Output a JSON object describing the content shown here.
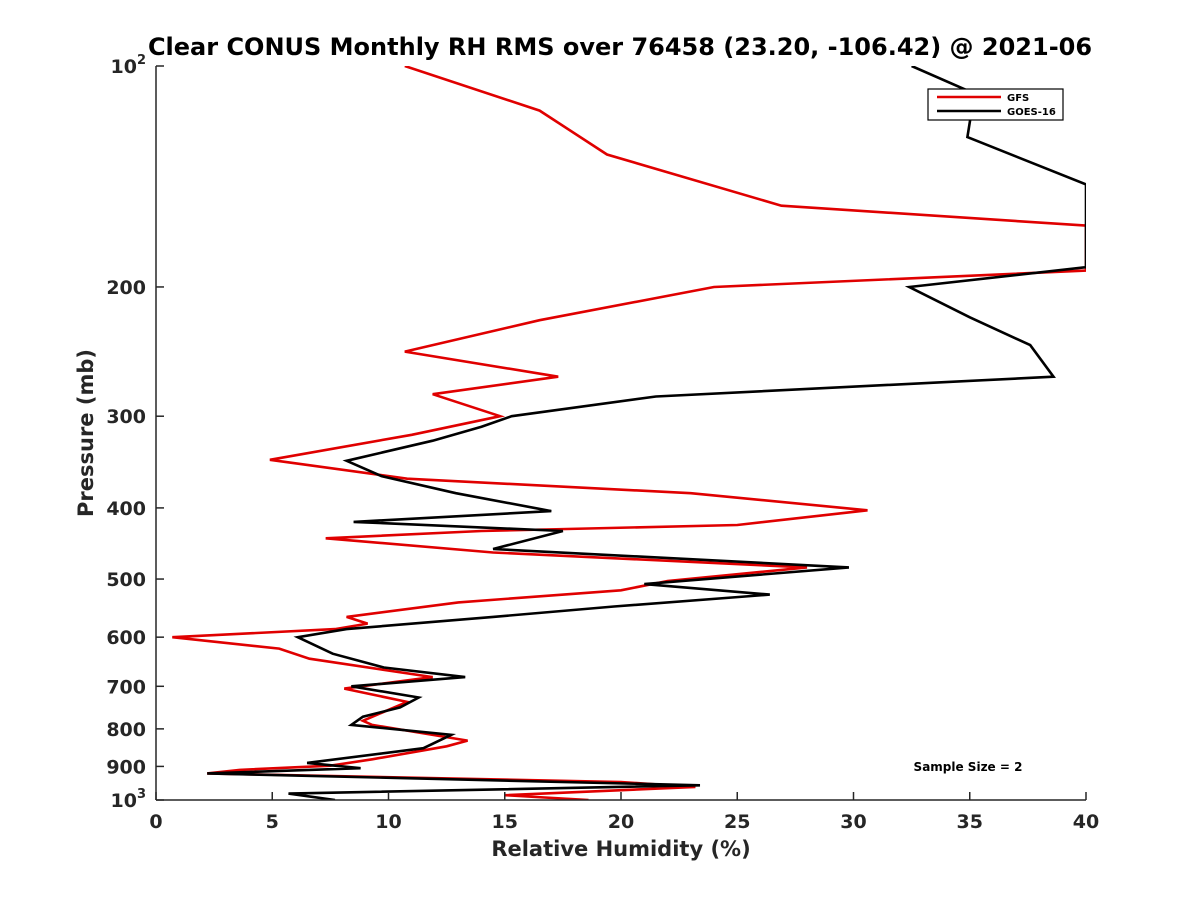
{
  "chart_data": {
    "type": "line",
    "title": "Clear CONUS Monthly RH RMS over 76458 (23.20, -106.42) @ 2021-06",
    "xlabel": "Relative Humidity (%)",
    "ylabel": "Pressure (mb)",
    "xlim": [
      0,
      40
    ],
    "ylim": [
      100,
      1000
    ],
    "y_scale": "log",
    "y_reversed": true,
    "x_ticks": [
      0,
      5,
      10,
      15,
      20,
      25,
      30,
      35,
      40
    ],
    "x_tick_labels": [
      "0",
      "5",
      "10",
      "15",
      "20",
      "25",
      "30",
      "35",
      "40"
    ],
    "y_ticks": [
      100,
      200,
      300,
      400,
      500,
      600,
      700,
      800,
      900,
      1000
    ],
    "y_tick_labels": [
      {
        "base": "10",
        "exp": "2"
      },
      {
        "base": "200",
        "exp": ""
      },
      {
        "base": "300",
        "exp": ""
      },
      {
        "base": "400",
        "exp": ""
      },
      {
        "base": "500",
        "exp": ""
      },
      {
        "base": "600",
        "exp": ""
      },
      {
        "base": "700",
        "exp": ""
      },
      {
        "base": "800",
        "exp": ""
      },
      {
        "base": "900",
        "exp": ""
      },
      {
        "base": "10",
        "exp": "3"
      }
    ],
    "grid": false,
    "legend_position": "top-right",
    "annotation": "Sample Size = 2",
    "series": [
      {
        "name": "GFS",
        "color": "#e00000",
        "points": [
          [
            10.7,
            100
          ],
          [
            16.5,
            115
          ],
          [
            19.4,
            132
          ],
          [
            26.9,
            155
          ],
          [
            40.0,
            165
          ],
          [
            40.0,
            190
          ],
          [
            24.0,
            200
          ],
          [
            16.5,
            222
          ],
          [
            10.7,
            245
          ],
          [
            17.3,
            265
          ],
          [
            11.9,
            280
          ],
          [
            14.8,
            300
          ],
          [
            11.0,
            318
          ],
          [
            4.9,
            344
          ],
          [
            10.8,
            365
          ],
          [
            23.0,
            382
          ],
          [
            30.6,
            403
          ],
          [
            25.0,
            422
          ],
          [
            14.0,
            430
          ],
          [
            7.3,
            440
          ],
          [
            14.5,
            460
          ],
          [
            28.0,
            482
          ],
          [
            22.0,
            503
          ],
          [
            20.0,
            518
          ],
          [
            13.0,
            538
          ],
          [
            8.2,
            563
          ],
          [
            9.1,
            575
          ],
          [
            7.7,
            585
          ],
          [
            0.7,
            600
          ],
          [
            5.3,
            622
          ],
          [
            6.6,
            642
          ],
          [
            11.9,
            680
          ],
          [
            8.1,
            705
          ],
          [
            10.8,
            735
          ],
          [
            8.9,
            780
          ],
          [
            9.3,
            790
          ],
          [
            13.4,
            830
          ],
          [
            12.5,
            845
          ],
          [
            9.3,
            880
          ],
          [
            7.5,
            898
          ],
          [
            3.6,
            910
          ],
          [
            2.2,
            920
          ],
          [
            20.0,
            945
          ],
          [
            23.2,
            960
          ],
          [
            15.0,
            985
          ],
          [
            18.6,
            1000
          ]
        ]
      },
      {
        "name": "GOES-16",
        "color": "#000000",
        "points": [
          [
            32.5,
            100
          ],
          [
            35.2,
            109
          ],
          [
            34.9,
            125
          ],
          [
            40.0,
            145
          ],
          [
            40.0,
            188
          ],
          [
            32.4,
            200
          ],
          [
            35.0,
            220
          ],
          [
            37.6,
            240
          ],
          [
            38.6,
            265
          ],
          [
            21.5,
            282
          ],
          [
            15.3,
            300
          ],
          [
            14.0,
            310
          ],
          [
            11.9,
            324
          ],
          [
            8.2,
            345
          ],
          [
            9.7,
            362
          ],
          [
            12.9,
            382
          ],
          [
            17.0,
            404
          ],
          [
            8.5,
            418
          ],
          [
            17.5,
            430
          ],
          [
            14.5,
            455
          ],
          [
            29.8,
            482
          ],
          [
            21.0,
            508
          ],
          [
            26.4,
            525
          ],
          [
            19.7,
            545
          ],
          [
            14.5,
            563
          ],
          [
            8.2,
            585
          ],
          [
            6.1,
            600
          ],
          [
            7.6,
            632
          ],
          [
            9.8,
            660
          ],
          [
            13.3,
            680
          ],
          [
            8.4,
            700
          ],
          [
            11.3,
            725
          ],
          [
            10.5,
            748
          ],
          [
            8.9,
            770
          ],
          [
            8.4,
            790
          ],
          [
            12.7,
            815
          ],
          [
            11.5,
            850
          ],
          [
            6.5,
            890
          ],
          [
            8.8,
            905
          ],
          [
            2.2,
            920
          ],
          [
            23.4,
            955
          ],
          [
            5.7,
            980
          ],
          [
            7.7,
            1000
          ]
        ]
      }
    ]
  }
}
